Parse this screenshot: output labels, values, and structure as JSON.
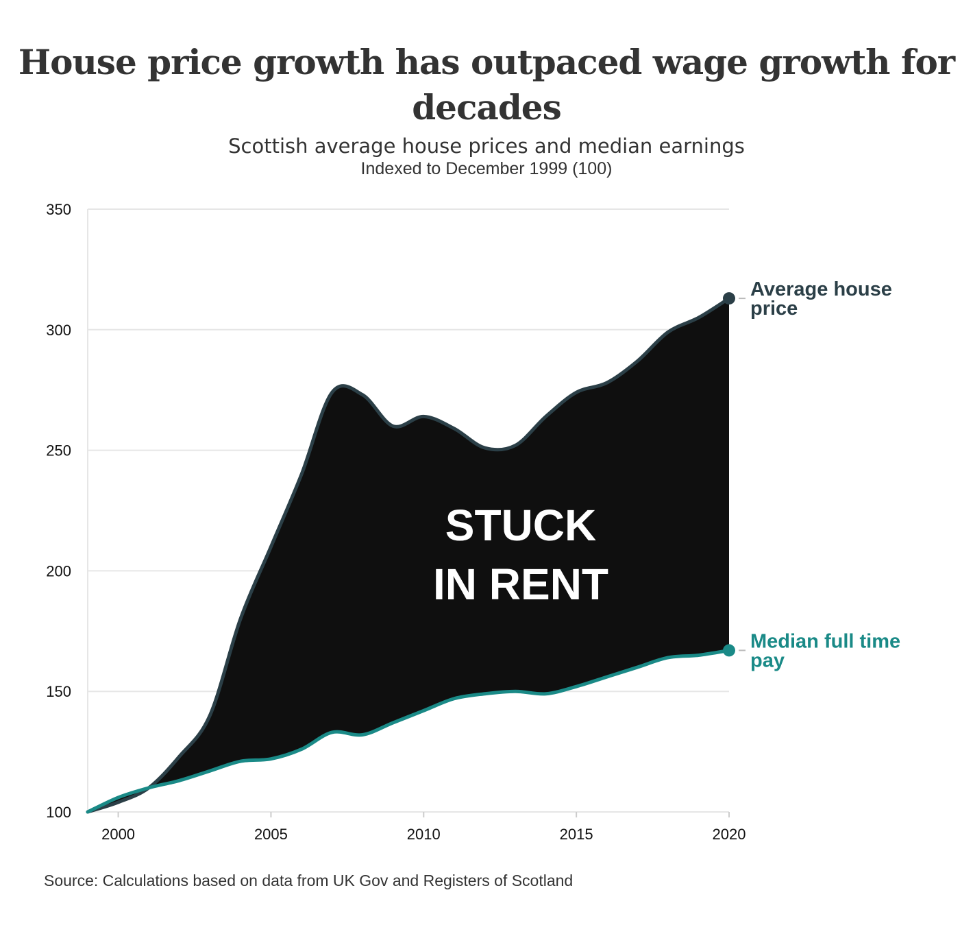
{
  "title": "House price growth has outpaced wage growth for decades",
  "subtitle": "Scottish average house prices and median earnings",
  "subtitle2": "Indexed to December 1999 (100)",
  "source": "Source: Calculations based on data from UK Gov and Registers of Scotland",
  "colors": {
    "house": "#2b3f47",
    "pay": "#1a8a87",
    "fill": "#0f0f0f",
    "grid": "#e6e6e6",
    "annotation": "#ffffff"
  },
  "chart_data": {
    "type": "area",
    "title": "House price growth has outpaced wage growth for decades",
    "subtitle": "Scottish average house prices and median earnings",
    "xlabel": "",
    "ylabel": "",
    "xlim": [
      1999,
      2020
    ],
    "ylim": [
      100,
      350
    ],
    "x_ticks": [
      2000,
      2005,
      2010,
      2015,
      2020
    ],
    "y_ticks": [
      100,
      150,
      200,
      250,
      300,
      350
    ],
    "grid": "horizontal",
    "annotation": [
      "STUCK",
      "IN RENT"
    ],
    "series": [
      {
        "name": "Average house price",
        "x": [
          1999,
          2000,
          2001,
          2002,
          2003,
          2004,
          2005,
          2006,
          2007,
          2008,
          2009,
          2010,
          2011,
          2012,
          2013,
          2014,
          2015,
          2016,
          2017,
          2018,
          2019,
          2020
        ],
        "values": [
          100,
          104,
          110,
          123,
          140,
          180,
          210,
          240,
          274,
          273,
          260,
          264,
          259,
          251,
          252,
          264,
          274,
          278,
          287,
          299,
          305,
          313
        ]
      },
      {
        "name": "Median full time pay",
        "x": [
          1999,
          2000,
          2001,
          2002,
          2003,
          2004,
          2005,
          2006,
          2007,
          2008,
          2009,
          2010,
          2011,
          2012,
          2013,
          2014,
          2015,
          2016,
          2017,
          2018,
          2019,
          2020
        ],
        "values": [
          100,
          106,
          110,
          113,
          117,
          121,
          122,
          126,
          133,
          132,
          137,
          142,
          147,
          149,
          150,
          149,
          152,
          156,
          160,
          164,
          165,
          167
        ]
      }
    ]
  }
}
